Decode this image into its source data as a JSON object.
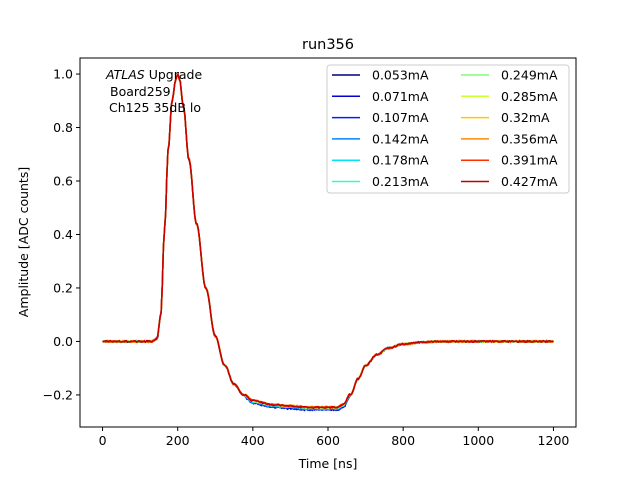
{
  "chart_data": {
    "type": "line",
    "title": "run356",
    "xlabel": "Time [ns]",
    "ylabel": "Amplitude [ADC counts]",
    "xlim": [
      -60,
      1260
    ],
    "ylim": [
      -0.32,
      1.06
    ],
    "xticks": [
      0,
      200,
      400,
      600,
      800,
      1000,
      1200
    ],
    "yticks": [
      -0.2,
      0.0,
      0.2,
      0.4,
      0.6,
      0.8,
      1.0
    ],
    "xtick_labels": [
      "0",
      "200",
      "400",
      "600",
      "800",
      "1000",
      "1200"
    ],
    "ytick_labels": [
      "−0.2",
      "0.0",
      "0.2",
      "0.4",
      "0.6",
      "0.8",
      "1.0"
    ],
    "grid": false,
    "legend_position": "top-right",
    "legend_columns": 2,
    "annotation": {
      "italic": "ATLAS",
      "rest": " Upgrade",
      "line2": "Board259",
      "line3": "Ch125 35dB lo"
    },
    "waveform": {
      "x": [
        0,
        100,
        130,
        145,
        155,
        165,
        175,
        185,
        195,
        200,
        205,
        215,
        230,
        250,
        275,
        300,
        325,
        350,
        375,
        400,
        450,
        500,
        550,
        600,
        625,
        640,
        660,
        680,
        700,
        730,
        760,
        800,
        850,
        900,
        1000,
        1100,
        1200
      ],
      "y": [
        0.0,
        0.0,
        0.0,
        0.01,
        0.1,
        0.42,
        0.72,
        0.9,
        0.98,
        1.0,
        0.98,
        0.88,
        0.68,
        0.44,
        0.2,
        0.02,
        -0.09,
        -0.16,
        -0.2,
        -0.225,
        -0.24,
        -0.245,
        -0.25,
        -0.25,
        -0.25,
        -0.24,
        -0.2,
        -0.14,
        -0.09,
        -0.05,
        -0.025,
        -0.01,
        -0.003,
        0.0,
        0.0,
        0.0,
        0.0
      ]
    },
    "series": [
      {
        "name": "0.053mA",
        "color": "#00007f",
        "tail_offset": -0.002
      },
      {
        "name": "0.071mA",
        "color": "#0000d1",
        "tail_offset": -0.006
      },
      {
        "name": "0.107mA",
        "color": "#0020ff",
        "tail_offset": -0.004
      },
      {
        "name": "0.142mA",
        "color": "#0084ff",
        "tail_offset": -0.003
      },
      {
        "name": "0.178mA",
        "color": "#00e4f7",
        "tail_offset": 0.0
      },
      {
        "name": "0.213mA",
        "color": "#2bffcb",
        "tail_offset": 0.001
      },
      {
        "name": "0.249mA",
        "color": "#7dff7a",
        "tail_offset": 0.002
      },
      {
        "name": "0.285mA",
        "color": "#cbff2b",
        "tail_offset": 0.003
      },
      {
        "name": "0.32mA",
        "color": "#ffc800",
        "tail_offset": 0.004
      },
      {
        "name": "0.356mA",
        "color": "#ff8a00",
        "tail_offset": 0.005
      },
      {
        "name": "0.391mA",
        "color": "#ff3000",
        "tail_offset": 0.004
      },
      {
        "name": "0.427mA",
        "color": "#c40000",
        "tail_offset": 0.003
      }
    ]
  }
}
